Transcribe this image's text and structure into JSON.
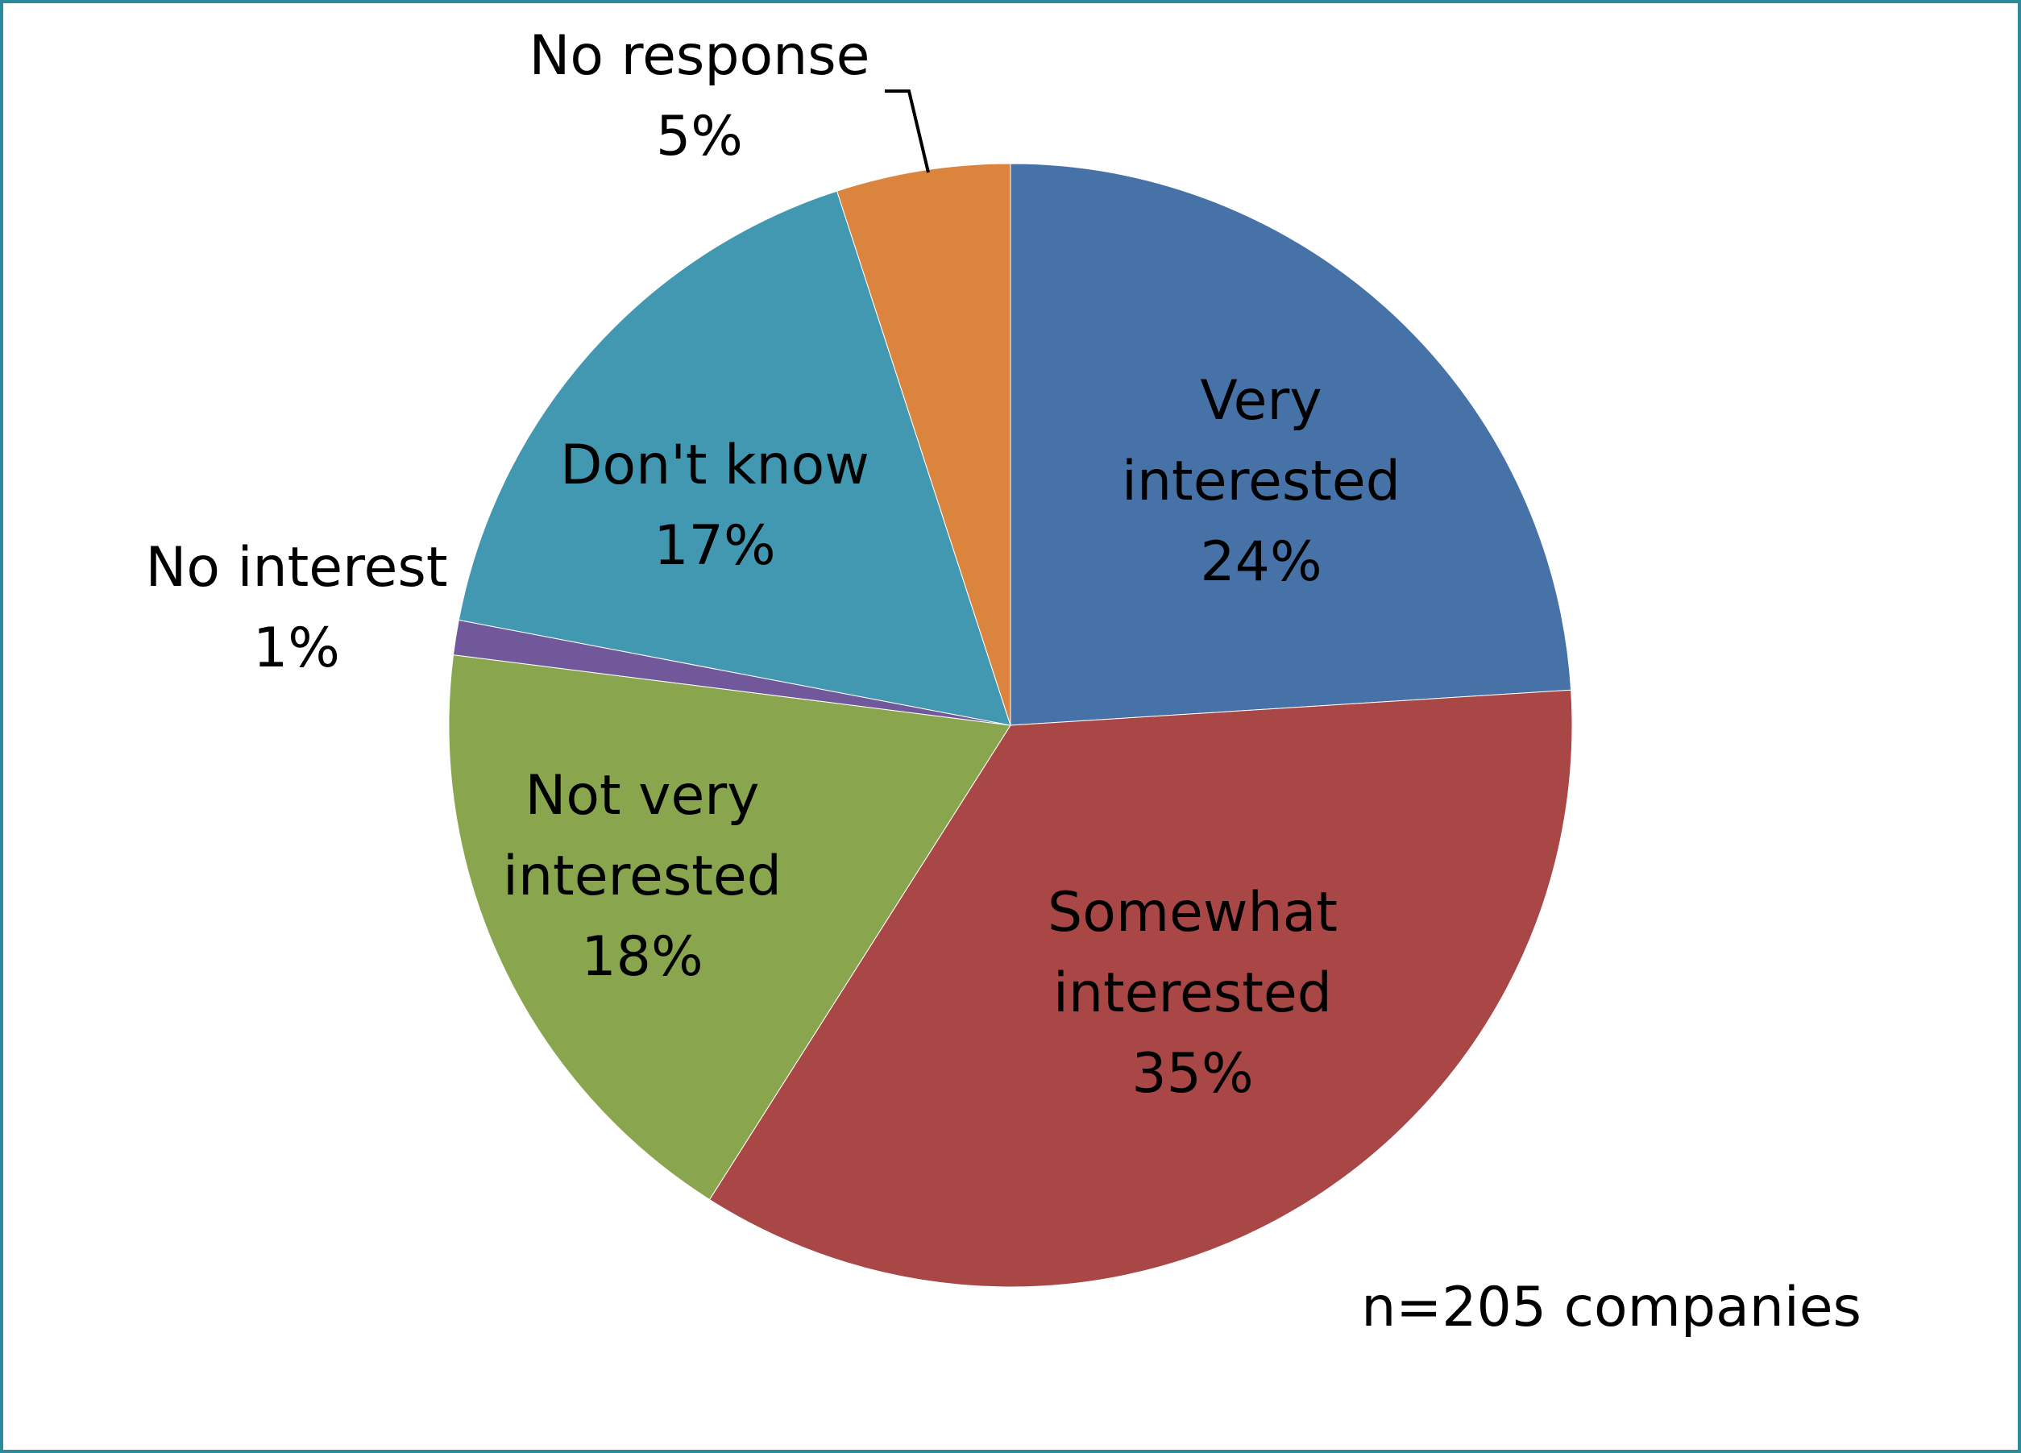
{
  "chart_data": {
    "type": "pie",
    "slices": [
      {
        "label": [
          "Very",
          "interested"
        ],
        "value": 24,
        "value_label": "24%",
        "color": "#4672a8"
      },
      {
        "label": [
          "Somewhat",
          "interested"
        ],
        "value": 35,
        "value_label": "35%",
        "color": "#a94646"
      },
      {
        "label": [
          "Not very",
          "interested"
        ],
        "value": 18,
        "value_label": "18%",
        "color": "#89a64f"
      },
      {
        "label": [
          "No interest"
        ],
        "value": 1,
        "value_label": "1%",
        "color": "#71589a"
      },
      {
        "label": [
          "Don't know"
        ],
        "value": 17,
        "value_label": "17%",
        "color": "#4298b0"
      },
      {
        "label": [
          "No response"
        ],
        "value": 5,
        "value_label": "5%",
        "color": "#db843e"
      }
    ],
    "start_angle": "12 o'clock",
    "direction": "clockwise",
    "legend": "none",
    "annotation": "n=205 companies"
  },
  "colors": {
    "frame_border": "#2a8a9a"
  }
}
